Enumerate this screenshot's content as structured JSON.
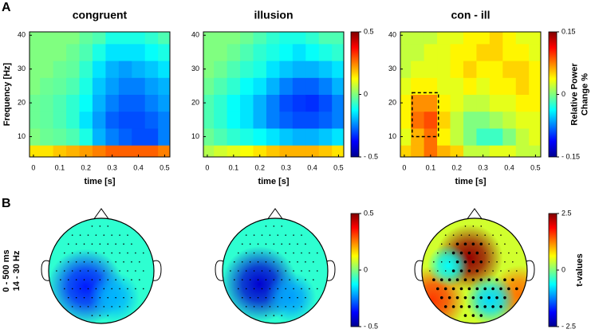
{
  "panel_labels": [
    "A",
    "B"
  ],
  "row_label": [
    "0 - 500 ms",
    "14 - 30 Hz"
  ],
  "chart_data": [
    {
      "type": "heatmap",
      "title": "congruent",
      "xlabel": "time [s]",
      "ylabel": "Frequency [Hz]",
      "colormap": "jet",
      "x": [
        0,
        0.05,
        0.1,
        0.15,
        0.2,
        0.25,
        0.3,
        0.35,
        0.4,
        0.45,
        0.5
      ],
      "y": [
        5,
        10,
        15,
        20,
        25,
        30,
        35,
        40
      ],
      "xlim": [
        -0.015,
        0.52
      ],
      "ylim": [
        4,
        41
      ],
      "xticks": [
        0,
        0.1,
        0.2,
        0.3,
        0.4,
        0.5
      ],
      "yticks": [
        10,
        20,
        30,
        40
      ],
      "clim": [
        -0.5,
        0.5
      ],
      "z": [
        [
          0.15,
          0.15,
          0.18,
          0.2,
          0.22,
          0.25,
          0.28,
          0.28,
          0.28,
          0.28,
          0.25
        ],
        [
          0,
          -0.02,
          -0.03,
          -0.05,
          -0.1,
          -0.2,
          -0.25,
          -0.28,
          -0.3,
          -0.3,
          -0.25
        ],
        [
          -0.02,
          -0.03,
          -0.05,
          -0.08,
          -0.15,
          -0.22,
          -0.28,
          -0.3,
          -0.3,
          -0.28,
          -0.25
        ],
        [
          -0.02,
          -0.03,
          -0.05,
          -0.08,
          -0.12,
          -0.2,
          -0.25,
          -0.28,
          -0.28,
          -0.25,
          -0.22
        ],
        [
          0,
          -0.02,
          -0.03,
          -0.05,
          -0.1,
          -0.18,
          -0.22,
          -0.25,
          -0.25,
          -0.22,
          -0.2
        ],
        [
          0,
          0,
          -0.02,
          -0.03,
          -0.08,
          -0.15,
          -0.2,
          -0.22,
          -0.2,
          -0.18,
          -0.15
        ],
        [
          0,
          0,
          0,
          -0.02,
          -0.05,
          -0.1,
          -0.15,
          -0.15,
          -0.15,
          -0.12,
          -0.1
        ],
        [
          0,
          0,
          0,
          0,
          -0.03,
          -0.05,
          -0.1,
          -0.1,
          -0.1,
          -0.08,
          -0.05
        ]
      ]
    },
    {
      "type": "heatmap",
      "title": "illusion",
      "xlabel": "time [s]",
      "colormap": "jet",
      "x": [
        0,
        0.05,
        0.1,
        0.15,
        0.2,
        0.25,
        0.3,
        0.35,
        0.4,
        0.45,
        0.5
      ],
      "y": [
        5,
        10,
        15,
        20,
        25,
        30,
        35,
        40
      ],
      "xlim": [
        -0.015,
        0.52
      ],
      "ylim": [
        4,
        41
      ],
      "xticks": [
        0,
        0.1,
        0.2,
        0.3,
        0.4,
        0.5
      ],
      "yticks": [
        10,
        20,
        30,
        40
      ],
      "clim": [
        -0.5,
        0.5
      ],
      "colorbar": true,
      "cticks": [
        0.5,
        0,
        {
          "value": -0.5,
          "label": "- 0.5"
        }
      ],
      "z": [
        [
          0.05,
          0.08,
          0.1,
          0.12,
          0.15,
          0.18,
          0.2,
          0.2,
          0.2,
          0.18,
          0.15
        ],
        [
          -0.02,
          -0.05,
          -0.08,
          -0.1,
          -0.12,
          -0.15,
          -0.18,
          -0.2,
          -0.2,
          -0.18,
          -0.15
        ],
        [
          -0.05,
          -0.08,
          -0.12,
          -0.15,
          -0.2,
          -0.25,
          -0.28,
          -0.3,
          -0.3,
          -0.28,
          -0.25
        ],
        [
          -0.05,
          -0.08,
          -0.12,
          -0.15,
          -0.2,
          -0.25,
          -0.3,
          -0.32,
          -0.33,
          -0.3,
          -0.25
        ],
        [
          -0.02,
          -0.05,
          -0.08,
          -0.12,
          -0.15,
          -0.2,
          -0.25,
          -0.28,
          -0.28,
          -0.25,
          -0.2
        ],
        [
          0,
          -0.02,
          -0.05,
          -0.08,
          -0.1,
          -0.15,
          -0.18,
          -0.2,
          -0.2,
          -0.18,
          -0.15
        ],
        [
          0,
          0,
          -0.02,
          -0.05,
          -0.08,
          -0.1,
          -0.12,
          -0.15,
          -0.12,
          -0.1,
          -0.08
        ],
        [
          0,
          0,
          0,
          -0.02,
          -0.05,
          -0.08,
          -0.1,
          -0.1,
          -0.08,
          -0.05,
          -0.05
        ]
      ]
    },
    {
      "type": "heatmap",
      "title": "con - ill",
      "xlabel": "time [s]",
      "colormap": "jet",
      "x": [
        0,
        0.05,
        0.1,
        0.15,
        0.2,
        0.25,
        0.3,
        0.35,
        0.4,
        0.45,
        0.5
      ],
      "y": [
        5,
        10,
        15,
        20,
        25,
        30,
        35,
        40
      ],
      "xlim": [
        -0.015,
        0.52
      ],
      "ylim": [
        4,
        41
      ],
      "xticks": [
        0,
        0.1,
        0.2,
        0.3,
        0.4,
        0.5
      ],
      "yticks": [
        10,
        20,
        30,
        40
      ],
      "clim": [
        -0.15,
        0.15
      ],
      "colorbar": true,
      "cticks": [
        0.15,
        0,
        {
          "value": -0.15,
          "label": "- 0.15"
        }
      ],
      "colorbar_label": [
        "Relative Power",
        "Change %"
      ],
      "highlight": {
        "xlim": [
          0.03,
          0.13
        ],
        "ylim": [
          10,
          23
        ]
      },
      "z": [
        [
          0.05,
          0.06,
          0.08,
          0.06,
          0.05,
          0.02,
          0.02,
          0.03,
          0.03,
          0.02,
          0.02
        ],
        [
          0.03,
          0.06,
          0.08,
          0.04,
          0.02,
          0,
          -0.02,
          -0.02,
          0,
          0.02,
          0.03
        ],
        [
          0.04,
          0.08,
          0.09,
          0.05,
          0.02,
          0,
          0,
          0.01,
          0.02,
          0.03,
          0.03
        ],
        [
          0.04,
          0.07,
          0.07,
          0.04,
          0.03,
          0.02,
          0.02,
          0.03,
          0.03,
          0.04,
          0.04
        ],
        [
          0.03,
          0.04,
          0.04,
          0.03,
          0.03,
          0.04,
          0.03,
          0.04,
          0.04,
          0.05,
          0.04
        ],
        [
          0.02,
          0.03,
          0.03,
          0.03,
          0.04,
          0.05,
          0.04,
          0.04,
          0.05,
          0.05,
          0.04
        ],
        [
          0.02,
          0.02,
          0.03,
          0.03,
          0.04,
          0.04,
          0.05,
          0.05,
          0.04,
          0.04,
          0.03
        ],
        [
          0.02,
          0.02,
          0.02,
          0.03,
          0.03,
          0.04,
          0.04,
          0.05,
          0.04,
          0.03,
          0.03
        ]
      ]
    },
    {
      "type": "topoplot",
      "colormap": "jet",
      "clim": [
        -0.5,
        0.5
      ],
      "background": -0.08,
      "blobs": [
        {
          "x": -0.3,
          "y": 0.3,
          "value": -0.35,
          "r": 0.45
        },
        {
          "x": 0.25,
          "y": 0.5,
          "value": -0.2,
          "r": 0.3
        }
      ]
    },
    {
      "type": "topoplot",
      "colormap": "jet",
      "clim": [
        -0.5,
        0.5
      ],
      "background": -0.08,
      "colorbar": true,
      "cticks": [
        0.5,
        0,
        {
          "value": -0.5,
          "label": "- 0.5"
        }
      ],
      "blobs": [
        {
          "x": -0.3,
          "y": 0.25,
          "value": -0.42,
          "r": 0.45
        },
        {
          "x": 0.3,
          "y": 0.5,
          "value": -0.22,
          "r": 0.3
        }
      ]
    },
    {
      "type": "topoplot",
      "colormap": "jet",
      "clim": [
        -2.5,
        2.5
      ],
      "background": 0.4,
      "colorbar": true,
      "cticks": [
        2.5,
        0,
        {
          "value": -2.5,
          "label": "- 2.5"
        }
      ],
      "colorbar_label": [
        "t-values"
      ],
      "blobs": [
        {
          "x": -0.1,
          "y": -0.25,
          "value": 2.4,
          "r": 0.4
        },
        {
          "x": -0.8,
          "y": 0.55,
          "value": 1.6,
          "r": 0.4
        },
        {
          "x": 0.85,
          "y": 0.45,
          "value": 1.3,
          "r": 0.35
        },
        {
          "x": 0.3,
          "y": 0.55,
          "value": -0.8,
          "r": 0.3
        },
        {
          "x": -0.5,
          "y": -0.1,
          "value": -0.6,
          "r": 0.25
        }
      ]
    }
  ]
}
